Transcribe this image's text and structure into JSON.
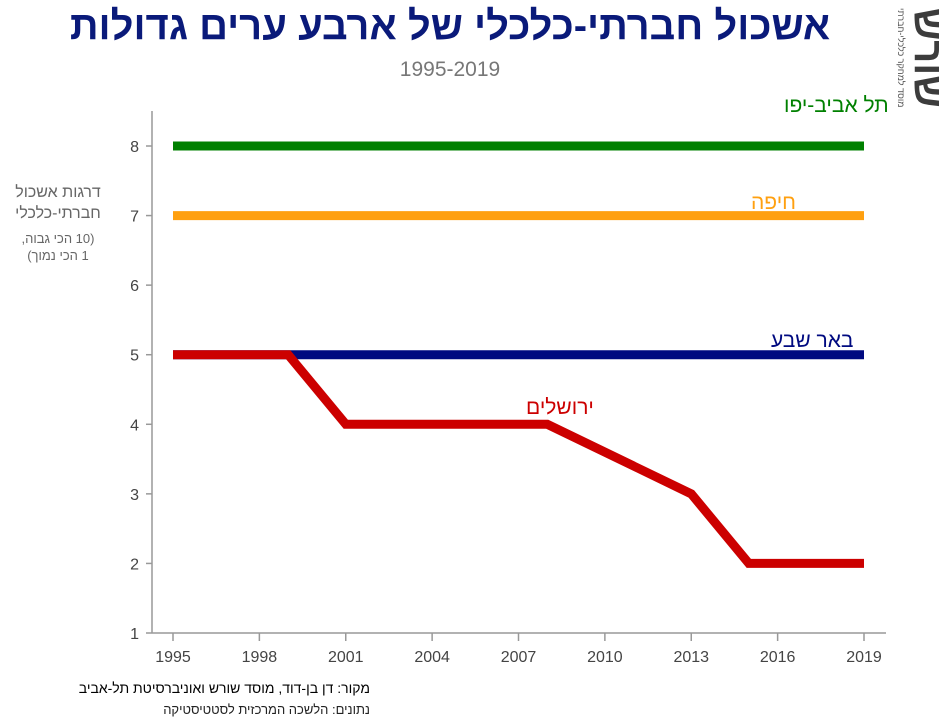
{
  "header": {
    "title": "אשכול חברתי-כלכלי של ארבע ערים גדולות",
    "subtitle": "1995-2019"
  },
  "logo": {
    "word": "שורש",
    "tagline": "מוסד למחקר כלכלי-חברתי"
  },
  "footer": {
    "source": "מקור: דן בן-דוד, מוסד שורש ואוניברסיטת תל-אביב",
    "data_note": "נתונים: הלשכה המרכזית לסטטיסטיקה"
  },
  "chart_data": {
    "type": "line",
    "title": "אשכול חברתי-כלכלי של ארבע ערים גדולות",
    "subtitle": "1995-2019",
    "ylabel": "דרגות אשכול חברתי-כלכלי",
    "ylabel_note_1": "(10 הכי גבוה,",
    "ylabel_note_2": "1 הכי נמוך)",
    "xlabel": "",
    "xlim": [
      1995,
      2019
    ],
    "ylim": [
      1,
      8
    ],
    "x_ticks": [
      1995,
      1998,
      2001,
      2004,
      2007,
      2010,
      2013,
      2016,
      2019
    ],
    "y_ticks": [
      1,
      2,
      3,
      4,
      5,
      6,
      7,
      8
    ],
    "grid": false,
    "legend": "labels-on-lines",
    "series": [
      {
        "name": "תל אביב-יפו",
        "color": "#008000",
        "x": [
          1995,
          2019
        ],
        "y": [
          8,
          8
        ]
      },
      {
        "name": "חיפה",
        "color": "#ffa010",
        "x": [
          1995,
          2019
        ],
        "y": [
          7,
          7
        ]
      },
      {
        "name": "באר שבע",
        "color": "#000a80",
        "x": [
          1995,
          2019
        ],
        "y": [
          5,
          5
        ]
      },
      {
        "name": "ירושלים",
        "color": "#cc0000",
        "x": [
          1995,
          1999,
          2001,
          2008,
          2013,
          2015,
          2019
        ],
        "y": [
          5,
          5,
          4,
          4,
          3,
          2,
          2
        ]
      }
    ]
  }
}
